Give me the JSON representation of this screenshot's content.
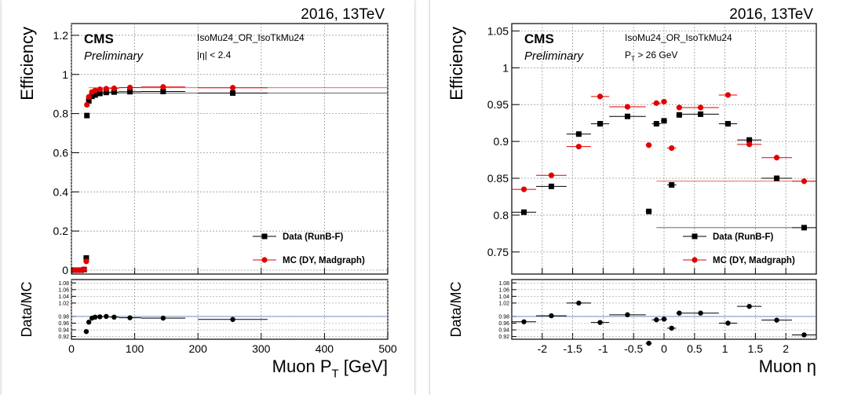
{
  "chart_data": [
    {
      "type": "scatter",
      "corner_label": "2016, 13TeV",
      "experiment": "CMS",
      "status": "Preliminary",
      "trigger": "IsoMu24_OR_IsoTkMu24",
      "cut": "|η| < 2.4",
      "xlabel": "Muon P_T [GeV]",
      "ylabel": "Efficiency",
      "ratio_ylabel": "Data/MC",
      "xlim": [
        0,
        500
      ],
      "ylim": [
        -0.02,
        1.26
      ],
      "ratio_ylim": [
        0.912,
        1.09
      ],
      "x_ticks": [
        0,
        100,
        200,
        300,
        400,
        500
      ],
      "y_ticks": [
        0,
        0.2,
        0.4,
        0.6,
        0.8,
        1,
        1.2
      ],
      "ratio_y_ticks": [
        0.92,
        0.94,
        0.96,
        0.98,
        1.02,
        1.04,
        1.06,
        1.08
      ],
      "grid": true,
      "legend_position": "bottom-right",
      "series": [
        {
          "name": "Data (RunB-F)",
          "color": "#000000",
          "marker": "square",
          "x": [
            5,
            10,
            15,
            20,
            23.5,
            24.5,
            27.5,
            32.5,
            37.5,
            45,
            55,
            67.5,
            92.5,
            145,
            255
          ],
          "xerr": [
            2.5,
            2.5,
            2.5,
            2.5,
            1,
            0.5,
            2.5,
            2.5,
            2.5,
            5,
            5,
            7.5,
            17.5,
            35,
            55
          ],
          "values": [
            0,
            0,
            0,
            0.003,
            0.062,
            0.79,
            0.865,
            0.888,
            0.895,
            0.903,
            0.908,
            0.91,
            0.912,
            0.913,
            0.905
          ]
        },
        {
          "name": "MC (DY, Madgraph)",
          "color": "#e00000",
          "marker": "circle",
          "x": [
            5,
            10,
            15,
            20,
            23.5,
            24.5,
            27.5,
            32.5,
            37.5,
            45,
            55,
            67.5,
            92.5,
            145,
            255
          ],
          "xerr": [
            2.5,
            2.5,
            2.5,
            2.5,
            1,
            0.5,
            2.5,
            2.5,
            2.5,
            5,
            5,
            7.5,
            17.5,
            35,
            55
          ],
          "values": [
            0,
            0,
            0,
            0.004,
            0.045,
            0.845,
            0.885,
            0.91,
            0.918,
            0.924,
            0.927,
            0.929,
            0.933,
            0.936,
            0.932
          ]
        }
      ],
      "ratio": {
        "x": [
          23.5,
          27.5,
          32.5,
          37.5,
          45,
          55,
          67.5,
          92.5,
          145,
          255
        ],
        "xerr": [
          1,
          2.5,
          2.5,
          2.5,
          5,
          5,
          7.5,
          17.5,
          35,
          55
        ],
        "values": [
          0.935,
          0.963,
          0.975,
          0.978,
          0.979,
          0.98,
          0.978,
          0.976,
          0.975,
          0.971
        ]
      }
    },
    {
      "type": "scatter",
      "corner_label": "2016, 13TeV",
      "experiment": "CMS",
      "status": "Preliminary",
      "trigger": "IsoMu24_OR_IsoTkMu24",
      "cut": "P_T > 26 GeV",
      "xlabel": "Muon η",
      "ylabel": "Efficiency",
      "ratio_ylabel": "Data/MC",
      "xlim": [
        -2.5,
        2.5
      ],
      "ylim": [
        0.72,
        1.06
      ],
      "ratio_ylim": [
        0.912,
        1.09
      ],
      "x_ticks": [
        -2,
        -1.5,
        -1,
        -0.5,
        0,
        0.5,
        1,
        1.5,
        2
      ],
      "y_ticks": [
        0.75,
        0.8,
        0.85,
        0.9,
        0.95,
        1,
        1.05
      ],
      "ratio_y_ticks": [
        0.92,
        0.94,
        0.96,
        0.98,
        1.02,
        1.04,
        1.06,
        1.08
      ],
      "grid": true,
      "legend_position": "bottom-right",
      "series": [
        {
          "name": "Data (RunB-F)",
          "color": "#000000",
          "marker": "square",
          "x": [
            -2.3,
            -1.85,
            -1.4,
            -1.05,
            -0.6,
            -0.25,
            -0.125,
            0,
            0.125,
            0.25,
            0.6,
            1.05,
            1.4,
            1.85,
            2.3
          ],
          "xerr": [
            0.2,
            0.25,
            0.2,
            0.15,
            0.3,
            0.05,
            0.075,
            0.05,
            0.075,
            0.05,
            0.3,
            0.15,
            0.2,
            0.25,
            0.2
          ],
          "values": [
            0.804,
            0.839,
            0.91,
            0.924,
            0.934,
            0.805,
            0.924,
            0.928,
            0.841,
            0.936,
            0.937,
            0.924,
            0.902,
            0.85,
            0.783
          ]
        },
        {
          "name": "MC (DY, Madgraph)",
          "color": "#e00000",
          "marker": "circle",
          "x": [
            -2.3,
            -1.85,
            -1.4,
            -1.05,
            -0.6,
            -0.25,
            -0.125,
            0,
            0.125,
            0.25,
            0.6,
            1.05,
            1.4,
            1.85,
            2.3
          ],
          "xerr": [
            0.2,
            0.25,
            0.2,
            0.15,
            0.3,
            0.05,
            0.075,
            0.05,
            0.075,
            0.05,
            0.3,
            0.15,
            0.2,
            0.25,
            0.2
          ],
          "values": [
            0.835,
            0.854,
            0.893,
            0.961,
            0.947,
            0.895,
            0.952,
            0.954,
            0.891,
            0.946,
            0.946,
            0.963,
            0.896,
            0.878,
            0.846
          ]
        }
      ],
      "ratio": {
        "x": [
          -2.3,
          -1.85,
          -1.4,
          -1.05,
          -0.6,
          -0.25,
          -0.125,
          0,
          0.125,
          0.25,
          0.6,
          1.05,
          1.4,
          1.85,
          2.3
        ],
        "xerr": [
          0.2,
          0.25,
          0.2,
          0.15,
          0.3,
          0.05,
          0.075,
          0.05,
          0.075,
          0.05,
          0.3,
          0.15,
          0.2,
          0.25,
          0.2
        ],
        "values": [
          0.964,
          0.982,
          1.02,
          0.962,
          0.985,
          0.9,
          0.97,
          0.972,
          0.945,
          0.99,
          0.99,
          0.96,
          1.01,
          0.969,
          0.925
        ]
      }
    }
  ]
}
